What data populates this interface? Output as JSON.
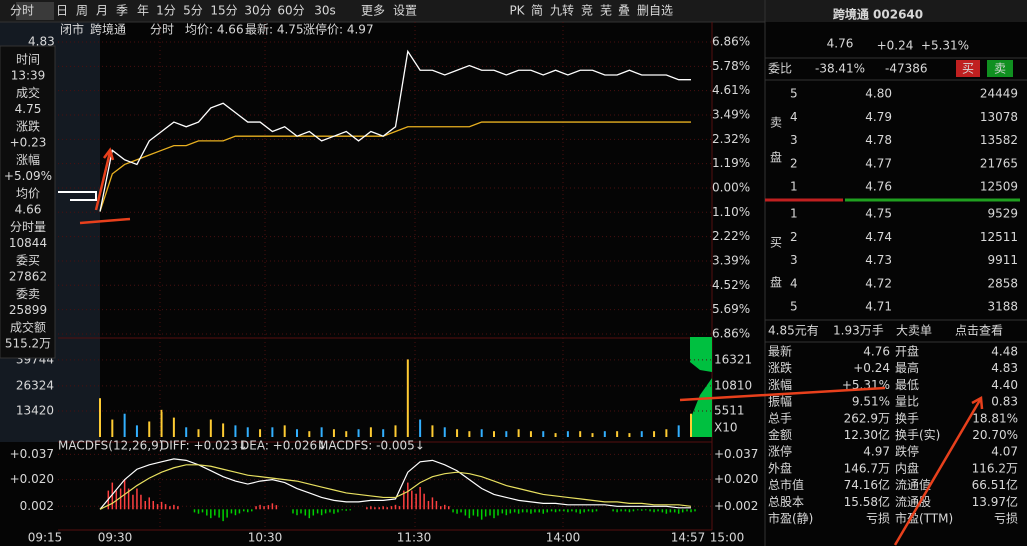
{
  "toolbar": {
    "periods": [
      "分时",
      "日",
      "周",
      "月",
      "季",
      "年",
      "1分",
      "5分",
      "15分",
      "30分",
      "60分",
      "30s",
      "更多",
      "设置"
    ],
    "right": [
      "PK",
      "简",
      "九转",
      "竞",
      "芜",
      "叠",
      "删自选"
    ]
  },
  "chart_header": {
    "status": "闭市",
    "name": "跨境通",
    "mode": "分时",
    "avg": "均价: 4.66",
    "latest": "最新: 4.75",
    "limit_up": "涨停价: 4.97"
  },
  "price_axis": {
    "top": "4.83",
    "range": [
      4.21,
      4.83
    ],
    "percents": [
      "6.86%",
      "5.78%",
      "4.61%",
      "3.49%",
      "2.32%",
      "1.19%",
      "0.00%",
      "1.10%",
      "2.22%",
      "3.39%",
      "4.52%",
      "5.69%",
      "6.86%"
    ]
  },
  "info_panel": [
    {
      "label": "时间",
      "value": "13:39",
      "color": "#e0e0e0"
    },
    {
      "label": "成交",
      "value": "4.75",
      "color": "#ff4040"
    },
    {
      "label": "涨跌",
      "value": "+0.23",
      "color": "#ff4040"
    },
    {
      "label": "涨幅",
      "value": "+5.09%",
      "color": "#ff4040"
    },
    {
      "label": "均价",
      "value": "4.66",
      "color": "#ff4040"
    },
    {
      "label": "分时量",
      "value": "10844",
      "color": "#4ec3ff"
    },
    {
      "label": "委买",
      "value": "27862",
      "color": "#ff4040"
    },
    {
      "label": "委卖",
      "value": "25899",
      "color": "#00d000"
    },
    {
      "label": "成交额",
      "value": "515.2万",
      "color": "#4ec3ff"
    }
  ],
  "volume_axis": {
    "range": [
      0,
      50000
    ],
    "left": [
      39744,
      26324,
      13420
    ],
    "right": [
      "16321",
      "10810",
      "5511",
      "X10"
    ]
  },
  "macd": {
    "header": {
      "name": "MACDFS(12,26,9)",
      "diff": "DIFF: +0.023↓",
      "dea": "DEA: +0.026↓",
      "macdfs": "MACDFS: -0.005↓"
    },
    "range": [
      -0.016,
      0.042
    ],
    "left": [
      {
        "value": 0.037,
        "label": "+0.037"
      },
      {
        "value": 0.02,
        "label": "+0.020"
      },
      {
        "value": 0.002,
        "label": "0.002"
      }
    ],
    "right": [
      {
        "value": 0.037,
        "label": "+0.037"
      },
      {
        "value": 0.02,
        "label": "+0.020"
      },
      {
        "value": 0.002,
        "label": "+0.002"
      }
    ]
  },
  "time_axis": [
    "09:15",
    "09:30",
    "10:30",
    "11:30",
    "14:00",
    "14:57",
    "15:00"
  ],
  "intraday": {
    "price": [
      4.47,
      4.6,
      4.58,
      4.57,
      4.62,
      4.64,
      4.66,
      4.65,
      4.66,
      4.69,
      4.7,
      4.68,
      4.66,
      4.66,
      4.64,
      4.65,
      4.63,
      4.64,
      4.62,
      4.63,
      4.64,
      4.62,
      4.64,
      4.63,
      4.65,
      4.81,
      4.77,
      4.77,
      4.76,
      4.77,
      4.78,
      4.77,
      4.77,
      4.76,
      4.77,
      4.77,
      4.76,
      4.77,
      4.76,
      4.77,
      4.77,
      4.76,
      4.76,
      4.77,
      4.76,
      4.76,
      4.76,
      4.75,
      4.75
    ],
    "avg": [
      4.47,
      4.55,
      4.57,
      4.58,
      4.59,
      4.6,
      4.61,
      4.61,
      4.62,
      4.62,
      4.62,
      4.63,
      4.63,
      4.63,
      4.63,
      4.63,
      4.63,
      4.63,
      4.63,
      4.63,
      4.63,
      4.63,
      4.63,
      4.63,
      4.64,
      4.65,
      4.65,
      4.65,
      4.65,
      4.65,
      4.65,
      4.66,
      4.66,
      4.66,
      4.66,
      4.66,
      4.66,
      4.66,
      4.66,
      4.66,
      4.66,
      4.66,
      4.66,
      4.66,
      4.66,
      4.66,
      4.66,
      4.66,
      4.66
    ],
    "volume": [
      20000,
      9000,
      12000,
      6000,
      8000,
      14000,
      10000,
      5000,
      4000,
      9000,
      7000,
      6000,
      5000,
      4000,
      5000,
      6000,
      4000,
      3000,
      5000,
      4000,
      3000,
      4000,
      5000,
      4000,
      6000,
      40000,
      9000,
      6000,
      5000,
      4000,
      3000,
      4000,
      3000,
      3000,
      4000,
      3000,
      3000,
      2000,
      3000,
      3000,
      2000,
      3000,
      3000,
      2000,
      3000,
      3000,
      4000,
      6000,
      12000
    ],
    "macd_hist": [
      0,
      0.018,
      0.02,
      0.014,
      0.008,
      0.005,
      0.003,
      0,
      -0.003,
      -0.006,
      -0.008,
      -0.004,
      -0.002,
      0.003,
      0.004,
      0,
      -0.004,
      -0.006,
      -0.004,
      -0.003,
      -0.001,
      0,
      0.002,
      0.002,
      0.003,
      0.018,
      0.015,
      0.008,
      0.003,
      -0.003,
      -0.006,
      -0.007,
      -0.006,
      -0.004,
      -0.003,
      -0.003,
      -0.003,
      -0.002,
      -0.002,
      -0.003,
      -0.002,
      0,
      -0.002,
      -0.002,
      -0.001,
      -0.002,
      -0.003,
      -0.003,
      -0.002
    ],
    "diff": [
      0,
      0.01,
      0.02,
      0.027,
      0.03,
      0.032,
      0.034,
      0.033,
      0.03,
      0.026,
      0.022,
      0.019,
      0.017,
      0.019,
      0.02,
      0.018,
      0.014,
      0.011,
      0.008,
      0.006,
      0.005,
      0.005,
      0.006,
      0.006,
      0.007,
      0.025,
      0.032,
      0.033,
      0.03,
      0.026,
      0.02,
      0.014,
      0.01,
      0.008,
      0.006,
      0.005,
      0.004,
      0.004,
      0.003,
      0.003,
      0.003,
      0.003,
      0.002,
      0.002,
      0.002,
      0.002,
      0.002,
      0.001,
      0.001
    ],
    "dea": [
      0,
      0.004,
      0.01,
      0.016,
      0.021,
      0.025,
      0.028,
      0.03,
      0.03,
      0.029,
      0.027,
      0.025,
      0.023,
      0.022,
      0.021,
      0.02,
      0.019,
      0.017,
      0.015,
      0.013,
      0.011,
      0.01,
      0.009,
      0.008,
      0.008,
      0.012,
      0.018,
      0.022,
      0.024,
      0.025,
      0.024,
      0.022,
      0.019,
      0.016,
      0.014,
      0.012,
      0.01,
      0.009,
      0.008,
      0.007,
      0.006,
      0.005,
      0.005,
      0.004,
      0.004,
      0.003,
      0.003,
      0.003,
      0.002
    ]
  },
  "quote": {
    "title": "跨境通 002640",
    "price": "4.76",
    "change": "+0.24",
    "pct": "+5.31%"
  },
  "order_ratio": {
    "label": "委比",
    "ratio": "-38.41%",
    "diff": "-47386",
    "buy": "买",
    "sell": "卖"
  },
  "sell_label": [
    "卖",
    "盘"
  ],
  "sell_orders": [
    {
      "level": 5,
      "price": "4.80",
      "volume": 24449
    },
    {
      "level": 4,
      "price": "4.79",
      "volume": 13078
    },
    {
      "level": 3,
      "price": "4.78",
      "volume": 13582
    },
    {
      "level": 2,
      "price": "4.77",
      "volume": 21765
    },
    {
      "level": 1,
      "price": "4.76",
      "volume": 12509
    }
  ],
  "buy_label": [
    "买",
    "盘"
  ],
  "buy_orders": [
    {
      "level": 1,
      "price": "4.75",
      "volume": 9529
    },
    {
      "level": 2,
      "price": "4.74",
      "volume": 12511
    },
    {
      "level": 3,
      "price": "4.73",
      "volume": 9911
    },
    {
      "level": 4,
      "price": "4.72",
      "volume": 2858
    },
    {
      "level": 5,
      "price": "4.71",
      "volume": 3188
    }
  ],
  "big_order": [
    "4.85元有",
    "1.93万手",
    "大卖单",
    "点击查看"
  ],
  "stats": [
    [
      "最新",
      "4.76",
      "#ff4040",
      "开盘",
      "4.48",
      "#00d000"
    ],
    [
      "涨跌",
      "+0.24",
      "#ff4040",
      "最高",
      "4.83",
      "#ff4040"
    ],
    [
      "涨幅",
      "+5.31%",
      "#ff4040",
      "最低",
      "4.40",
      "#00d000"
    ],
    [
      "振幅",
      "9.51%",
      "#e0e0e0",
      "量比",
      "0.83",
      "#00d000"
    ],
    [
      "总手",
      "262.9万",
      "#e0e0e0",
      "换手",
      "18.81%",
      "#e0e0e0"
    ],
    [
      "金额",
      "12.30亿",
      "#e0e0e0",
      "换手(实)",
      "20.70%",
      "#e0e0e0"
    ],
    [
      "涨停",
      "4.97",
      "#ff4040",
      "跌停",
      "4.07",
      "#00d000"
    ],
    [
      "外盘",
      "146.7万",
      "#ff4040",
      "内盘",
      "116.2万",
      "#00d000"
    ],
    [
      "总市值",
      "74.16亿",
      "#e0e0e0",
      "流通值",
      "66.51亿",
      "#e0e0e0"
    ],
    [
      "总股本",
      "15.58亿",
      "#e0e0e0",
      "流通股",
      "13.97亿",
      "#e0e0e0"
    ],
    [
      "市盈(静)",
      "亏损",
      "#e0e0e0",
      "市盈(TTM)",
      "亏损",
      "#e0e0e0"
    ]
  ]
}
